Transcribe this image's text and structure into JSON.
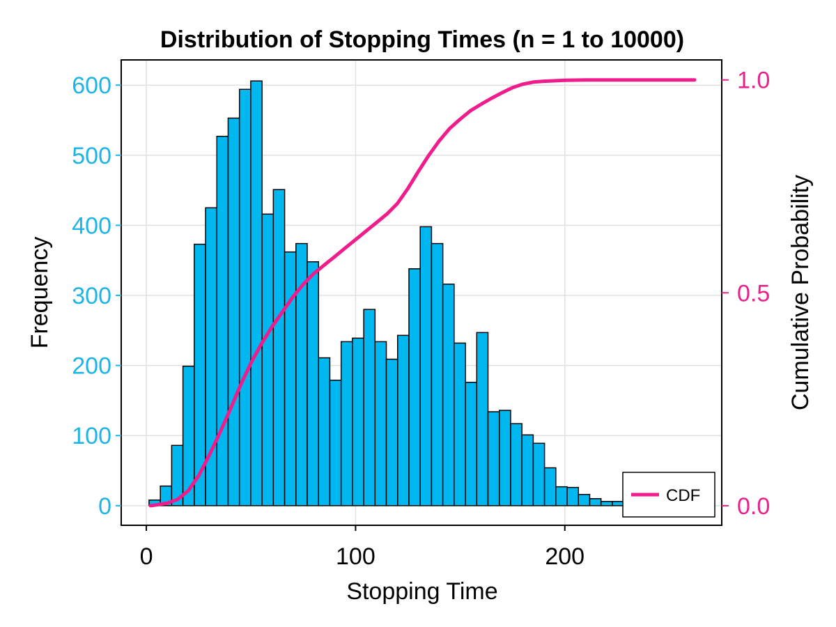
{
  "chart_data": {
    "type": "bar",
    "title": "Distribution of Stopping Times (n = 1 to 10000)",
    "xlabel": "Stopping Time",
    "ylabel_left": "Frequency",
    "ylabel_right": "Cumulative Probability",
    "xlim": [
      -12,
      275
    ],
    "ylim_left": [
      -28,
      636
    ],
    "ylim_right": [
      -0.046,
      1.047
    ],
    "x_ticks": [
      {
        "value": 0,
        "label": "0"
      },
      {
        "value": 100,
        "label": "100"
      },
      {
        "value": 200,
        "label": "200"
      }
    ],
    "y_left_ticks": [
      {
        "value": 0,
        "label": "0"
      },
      {
        "value": 100,
        "label": "100"
      },
      {
        "value": 200,
        "label": "200"
      },
      {
        "value": 300,
        "label": "300"
      },
      {
        "value": 400,
        "label": "400"
      },
      {
        "value": 500,
        "label": "500"
      },
      {
        "value": 600,
        "label": "600"
      }
    ],
    "y_right_ticks": [
      {
        "value": 0.0,
        "label": "0.0"
      },
      {
        "value": 0.5,
        "label": "0.5"
      },
      {
        "value": 1.0,
        "label": "1.0"
      }
    ],
    "grid": true,
    "colors": {
      "bars": "#00b8ef",
      "bar_edges": "#000000",
      "cdf": "#f01c8c",
      "left_axis": "#1eb4e6",
      "right_axis": "#e6228c",
      "grid": "#e0e0e0"
    },
    "histogram": {
      "name": "Frequency",
      "bin_width": 5.4,
      "bin_start": 1.3,
      "values": [
        8,
        28,
        86,
        199,
        373,
        425,
        527,
        553,
        594,
        606,
        416,
        451,
        362,
        374,
        348,
        211,
        179,
        234,
        239,
        280,
        234,
        209,
        243,
        338,
        398,
        374,
        316,
        232,
        176,
        247,
        134,
        136,
        117,
        101,
        89,
        54,
        27,
        26,
        16,
        10,
        6,
        6,
        3,
        2
      ]
    },
    "cdf": {
      "name": "CDF",
      "x": [
        2,
        5,
        10,
        15,
        20,
        25,
        30,
        35,
        40,
        45,
        50,
        55,
        60,
        65,
        70,
        75,
        80,
        85,
        90,
        95,
        100,
        105,
        110,
        115,
        120,
        125,
        130,
        135,
        140,
        145,
        150,
        155,
        160,
        165,
        170,
        175,
        180,
        185,
        190,
        200,
        210,
        220,
        262
      ],
      "y": [
        0.0,
        0.002,
        0.006,
        0.015,
        0.035,
        0.07,
        0.118,
        0.17,
        0.225,
        0.283,
        0.335,
        0.38,
        0.42,
        0.455,
        0.49,
        0.52,
        0.545,
        0.565,
        0.585,
        0.605,
        0.625,
        0.645,
        0.665,
        0.685,
        0.71,
        0.745,
        0.785,
        0.823,
        0.857,
        0.886,
        0.908,
        0.928,
        0.943,
        0.957,
        0.97,
        0.982,
        0.99,
        0.995,
        0.997,
        0.999,
        1.0,
        1.0,
        1.0
      ]
    },
    "legend": {
      "entries": [
        {
          "label": "CDF"
        }
      ],
      "placement": "bottom-right"
    }
  }
}
